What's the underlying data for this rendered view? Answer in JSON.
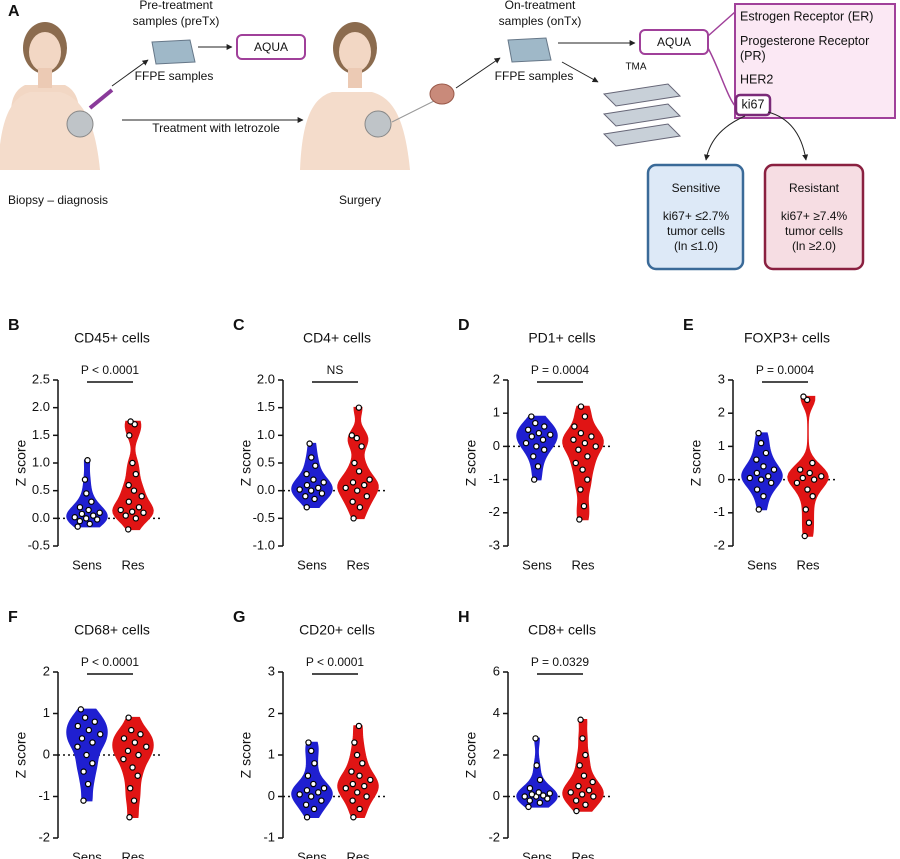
{
  "diagram": {
    "label": "A",
    "pre_title": [
      "Pre-treatment",
      "samples (preTx)"
    ],
    "pre_ffpe": "FFPE samples",
    "pre_aqua": "AQUA",
    "treatment": "Treatment with letrozole",
    "biopsy": "Biopsy – diagnosis",
    "surgery": "Surgery",
    "on_title": [
      "On-treatment",
      "samples (onTx)"
    ],
    "on_ffpe": "FFPE samples",
    "tma": "TMA",
    "on_aqua": "AQUA",
    "markers": [
      "Estrogen Receptor (ER)",
      "Progesterone Receptor (PR)",
      "HER2",
      "ki67"
    ],
    "sensitive": {
      "title": "Sensitive",
      "lines": [
        "ki67+ ≤2.7%",
        "tumor cells",
        "(ln ≤1.0)"
      ]
    },
    "resistant": {
      "title": "Resistant",
      "lines": [
        "ki67+ ≥7.4%",
        "tumor cells",
        "(ln ≥2.0)"
      ]
    }
  },
  "chart_data": [
    {
      "type": "violin",
      "label": "B",
      "title": "CD45+ cells",
      "ylabel": "Z score",
      "annotation": "P < 0.0001",
      "categories": [
        "Sens",
        "Res"
      ],
      "colors": [
        "#1f1fd0",
        "#e01414"
      ],
      "hline": 0,
      "ylim": [
        -0.5,
        2.5
      ],
      "yticks": [
        -0.5,
        {
          "value": 0,
          "label": "0.0"
        },
        0.5,
        {
          "value": 1,
          "label": "1.0"
        },
        1.5,
        {
          "value": 2,
          "label": "2.0"
        },
        2.5
      ],
      "values": [
        [
          -0.15,
          -0.1,
          -0.05,
          -0.02,
          0,
          0.02,
          0.05,
          0.08,
          0.1,
          0.15,
          0.2,
          0.3,
          0.45,
          0.7,
          1.05
        ],
        [
          -0.2,
          0,
          0.05,
          0.1,
          0.12,
          0.15,
          0.2,
          0.3,
          0.4,
          0.5,
          0.6,
          0.8,
          1.0,
          1.5,
          1.7,
          1.75
        ]
      ]
    },
    {
      "type": "violin",
      "label": "C",
      "title": "CD4+ cells",
      "ylabel": "Z score",
      "annotation": "NS",
      "categories": [
        "Sens",
        "Res"
      ],
      "colors": [
        "#1f1fd0",
        "#e01414"
      ],
      "hline": 0,
      "ylim": [
        -1,
        2
      ],
      "yticks": [
        {
          "value": -1,
          "label": "-1.0"
        },
        -0.5,
        {
          "value": 0,
          "label": "0.0"
        },
        0.5,
        {
          "value": 1,
          "label": "1.0"
        },
        1.5,
        {
          "value": 2,
          "label": "2.0"
        }
      ],
      "values": [
        [
          -0.3,
          -0.15,
          -0.1,
          -0.05,
          0,
          0.02,
          0.05,
          0.1,
          0.15,
          0.2,
          0.3,
          0.45,
          0.6,
          0.85
        ],
        [
          -0.5,
          -0.3,
          -0.2,
          -0.1,
          0,
          0.05,
          0.1,
          0.15,
          0.2,
          0.35,
          0.5,
          0.8,
          0.95,
          1.0,
          1.5
        ]
      ]
    },
    {
      "type": "violin",
      "label": "D",
      "title": "PD1+ cells",
      "ylabel": "Z score",
      "annotation": "P = 0.0004",
      "categories": [
        "Sens",
        "Res"
      ],
      "colors": [
        "#1f1fd0",
        "#e01414"
      ],
      "hline": 0,
      "ylim": [
        -3,
        2
      ],
      "yticks": [
        -3,
        -2,
        -1,
        0,
        1,
        2
      ],
      "values": [
        [
          -1,
          -0.6,
          -0.3,
          -0.1,
          0,
          0.1,
          0.2,
          0.3,
          0.35,
          0.4,
          0.5,
          0.6,
          0.7,
          0.9
        ],
        [
          -2.2,
          -1.8,
          -1.3,
          -1,
          -0.7,
          -0.5,
          -0.3,
          -0.1,
          0,
          0.1,
          0.2,
          0.3,
          0.4,
          0.6,
          0.9,
          1.2
        ]
      ]
    },
    {
      "type": "violin",
      "label": "E",
      "title": "FOXP3+ cells",
      "ylabel": "Z score",
      "annotation": "P = 0.0004",
      "categories": [
        "Sens",
        "Res"
      ],
      "colors": [
        "#1f1fd0",
        "#e01414"
      ],
      "hline": 0,
      "ylim": [
        -2,
        3
      ],
      "yticks": [
        -2,
        -1,
        0,
        1,
        2,
        3
      ],
      "values": [
        [
          -0.9,
          -0.5,
          -0.3,
          -0.1,
          0,
          0.05,
          0.1,
          0.2,
          0.3,
          0.4,
          0.6,
          0.8,
          1.1,
          1.4
        ],
        [
          -1.7,
          -1.3,
          -0.9,
          -0.5,
          -0.3,
          -0.1,
          0,
          0.05,
          0.1,
          0.2,
          0.3,
          0.5,
          2.4,
          2.5
        ]
      ]
    },
    {
      "type": "violin",
      "label": "F",
      "title": "CD68+ cells",
      "ylabel": "Z score",
      "annotation": "P < 0.0001",
      "categories": [
        "Sens",
        "Res"
      ],
      "colors": [
        "#1f1fd0",
        "#e01414"
      ],
      "hline": 0,
      "ylim": [
        -2,
        2
      ],
      "yticks": [
        -2,
        -1,
        0,
        1,
        2
      ],
      "values": [
        [
          -1.1,
          -0.7,
          -0.4,
          -0.2,
          0,
          0.2,
          0.3,
          0.4,
          0.5,
          0.6,
          0.7,
          0.8,
          0.9,
          1.1
        ],
        [
          -1.5,
          -1.1,
          -0.8,
          -0.5,
          -0.3,
          -0.1,
          0,
          0.1,
          0.2,
          0.3,
          0.4,
          0.5,
          0.6,
          0.9
        ]
      ]
    },
    {
      "type": "violin",
      "label": "G",
      "title": "CD20+ cells",
      "ylabel": "Z score",
      "annotation": "P < 0.0001",
      "categories": [
        "Sens",
        "Res"
      ],
      "colors": [
        "#1f1fd0",
        "#e01414"
      ],
      "hline": 0,
      "ylim": [
        -1,
        3
      ],
      "yticks": [
        -1,
        0,
        1,
        2,
        3
      ],
      "values": [
        [
          -0.5,
          -0.3,
          -0.2,
          -0.1,
          0,
          0.05,
          0.1,
          0.15,
          0.2,
          0.3,
          0.5,
          0.8,
          1.1,
          1.3
        ],
        [
          -0.5,
          -0.3,
          -0.1,
          0,
          0.1,
          0.2,
          0.25,
          0.3,
          0.4,
          0.5,
          0.6,
          0.8,
          1.0,
          1.3,
          1.7
        ]
      ]
    },
    {
      "type": "violin",
      "label": "H",
      "title": "CD8+ cells",
      "ylabel": "Z score",
      "annotation": "P = 0.0329",
      "categories": [
        "Sens",
        "Res"
      ],
      "colors": [
        "#1f1fd0",
        "#e01414"
      ],
      "hline": 0,
      "ylim": [
        -2,
        6
      ],
      "yticks": [
        -2,
        0,
        2,
        4,
        6
      ],
      "values": [
        [
          -0.5,
          -0.3,
          -0.2,
          -0.1,
          0,
          0,
          0.05,
          0.1,
          0.15,
          0.2,
          0.4,
          0.8,
          1.5,
          2.8
        ],
        [
          -0.7,
          -0.4,
          -0.2,
          0,
          0.1,
          0.2,
          0.3,
          0.5,
          0.7,
          1,
          1.5,
          2,
          2.8,
          3.7
        ]
      ]
    }
  ]
}
